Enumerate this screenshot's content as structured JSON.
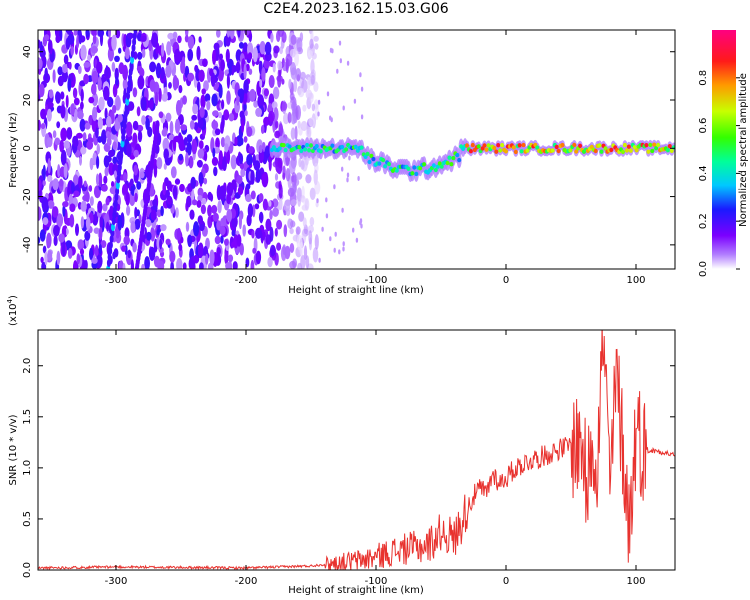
{
  "figure_title": "C2E4.2023.162.15.03.G06",
  "colors": {
    "signal": "#e8322e",
    "axis": "#000000",
    "background": "#ffffff"
  },
  "chart_data": [
    {
      "type": "heatmap",
      "title": "C2E4.2023.162.15.03.G06",
      "xlabel": "Height of straight line (km)",
      "ylabel": "Frequency (Hz)",
      "xlim": [
        -360,
        130
      ],
      "ylim": [
        -50,
        49
      ],
      "xticks": [
        -300,
        -200,
        -100,
        0,
        100
      ],
      "yticks": [
        -40,
        -20,
        0,
        20,
        40
      ],
      "colorbar": {
        "label": "Normalized spectral amplitude",
        "range": [
          0,
          1
        ],
        "ticks": [
          "0.0",
          "0.2",
          "0.4",
          "0.6",
          "0.8"
        ],
        "colormap": "rainbow (white-purple-blue-cyan-green-yellow-red-magenta)"
      },
      "features": {
        "noise_region_km": [
          -360,
          -145
        ],
        "fading_noise_km": [
          -185,
          -140
        ],
        "signal_trace_start_km": -180,
        "signal_trace_center_hz": 0,
        "diagonal_streaks": [
          {
            "from_km": -306,
            "from_hz": -50,
            "to_km": -285,
            "to_hz": 49
          },
          {
            "from_km": -284,
            "from_hz": -50,
            "to_km": -268,
            "to_hz": 10
          }
        ]
      }
    },
    {
      "type": "line",
      "xlabel": "Height of straight line (km)",
      "ylabel": "SNR (10 * v/v)",
      "y_multiplier": "(x10",
      "y_multiplier_exp": "4",
      "y_multiplier_close": ")",
      "xlim": [
        -360,
        130
      ],
      "ylim": [
        0,
        2.35
      ],
      "xticks": [
        -300,
        -200,
        -100,
        0,
        100
      ],
      "yticks": [
        "0.0",
        "0.5",
        "1.0",
        "1.5",
        "2.0"
      ],
      "series": [
        {
          "color": "#e8322e",
          "x": [
            -360,
            -300,
            -200,
            -150,
            -130,
            -110,
            -100,
            -90,
            -80,
            -70,
            -60,
            -55,
            -50,
            -45,
            -40,
            -35,
            -30,
            -25,
            -20,
            -15,
            -10,
            -5,
            0,
            5,
            10,
            20,
            30,
            40,
            50,
            55,
            60,
            62,
            65,
            70,
            75,
            80,
            85,
            90,
            95,
            100,
            105,
            110,
            120,
            130
          ],
          "values": [
            0.02,
            0.03,
            0.02,
            0.04,
            0.07,
            0.1,
            0.13,
            0.17,
            0.2,
            0.22,
            0.24,
            0.3,
            0.38,
            0.35,
            0.3,
            0.45,
            0.6,
            0.72,
            0.8,
            0.75,
            0.95,
            0.85,
            0.9,
            0.97,
            1.02,
            1.08,
            1.12,
            1.18,
            1.22,
            1.25,
            1.2,
            0.6,
            1.3,
            1.1,
            2.3,
            0.8,
            1.9,
            1.2,
            0.4,
            1.4,
            1.2,
            1.17,
            1.16,
            1.12
          ]
        }
      ]
    }
  ]
}
